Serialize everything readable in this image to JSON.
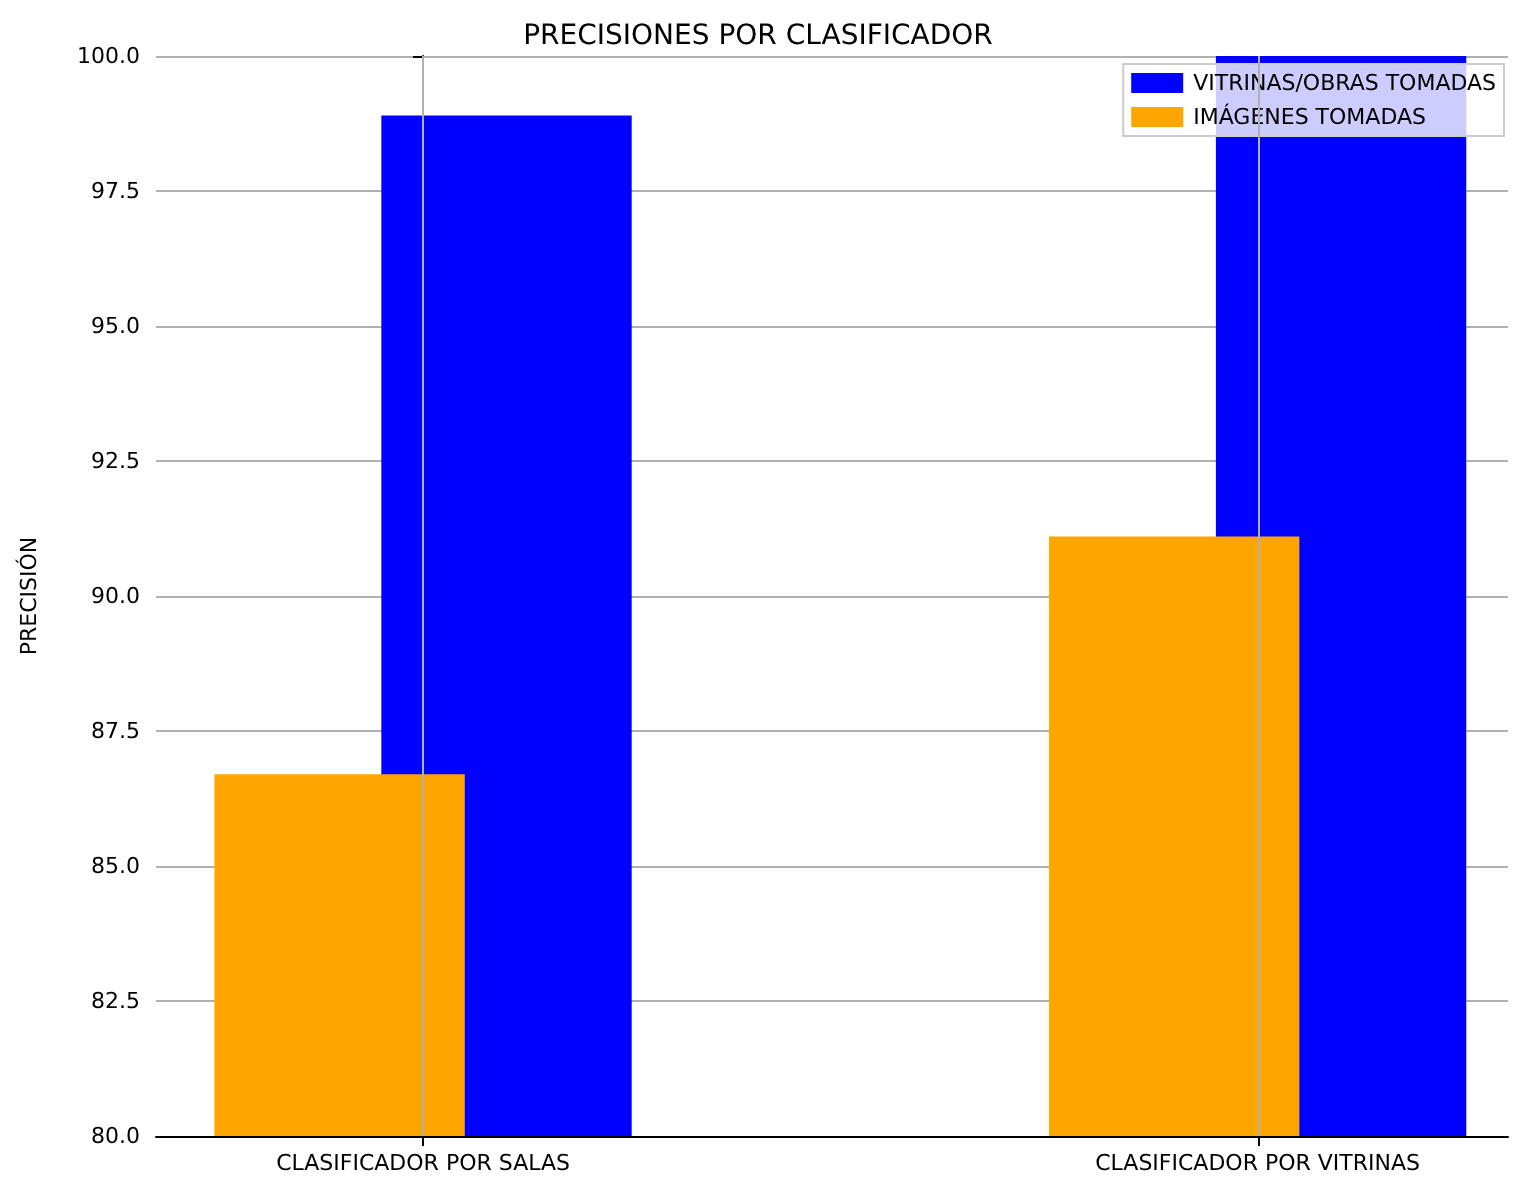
{
  "chart_data": {
    "type": "bar",
    "title": "PRECISIONES POR CLASIFICADOR",
    "ylabel": "PRECISIÓN",
    "categories": [
      "CLASIFICADOR POR SALAS",
      "CLASIFICADOR POR VITRINAS"
    ],
    "series": [
      {
        "name": "VITRINAS/OBRAS TOMADAS",
        "color": "#0000ff",
        "values": [
          98.9,
          100
        ]
      },
      {
        "name": "IMÁGENES TOMADAS",
        "color": "#ffa500",
        "values": [
          86.7,
          91.1
        ]
      }
    ],
    "ylim": [
      80,
      100
    ],
    "yticks": [
      {
        "value": 80,
        "label": "80.0"
      },
      {
        "value": 82.5,
        "label": "82.5"
      },
      {
        "value": 85,
        "label": "85.0"
      },
      {
        "value": 87.5,
        "label": "87.5"
      },
      {
        "value": 90,
        "label": "90.0"
      },
      {
        "value": 92.5,
        "label": "92.5"
      },
      {
        "value": 95,
        "label": "95.0"
      },
      {
        "value": 97.5,
        "label": "97.5"
      },
      {
        "value": 100,
        "label": "100.0"
      }
    ],
    "grid": true,
    "legend": "top right"
  }
}
